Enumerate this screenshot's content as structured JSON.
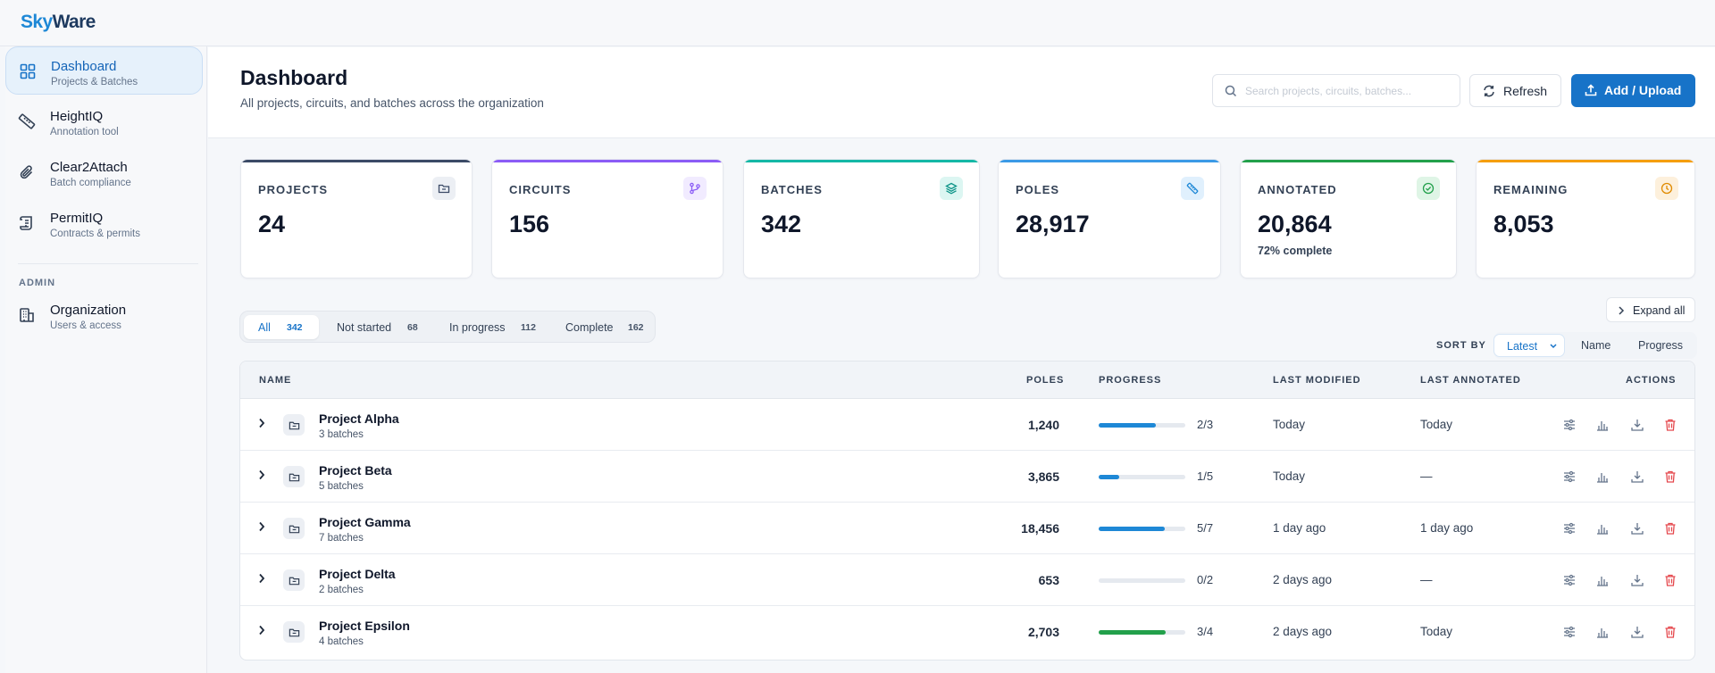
{
  "brand": {
    "sky": "Sky",
    "ware": "Ware"
  },
  "sidebar": {
    "items": [
      {
        "title": "Dashboard",
        "subtitle": "Projects & Batches",
        "icon": "grid-icon"
      },
      {
        "title": "HeightIQ",
        "subtitle": "Annotation tool",
        "icon": "ruler-icon"
      },
      {
        "title": "Clear2Attach",
        "subtitle": "Batch compliance",
        "icon": "paperclip-icon"
      },
      {
        "title": "PermitIQ",
        "subtitle": "Contracts & permits",
        "icon": "scroll-icon"
      }
    ],
    "admin_label": "ADMIN",
    "admin_items": [
      {
        "title": "Organization",
        "subtitle": "Users & access",
        "icon": "building-icon"
      }
    ]
  },
  "header": {
    "title": "Dashboard",
    "subtitle": "All projects, circuits, and batches across the organization",
    "search_placeholder": "Search projects, circuits, batches...",
    "refresh_label": "Refresh",
    "add_label": "Add / Upload"
  },
  "stats": [
    {
      "label": "PROJECTS",
      "value": "24",
      "note": "",
      "color": "#3b4a66",
      "icon": "folder-icon"
    },
    {
      "label": "CIRCUITS",
      "value": "156",
      "note": "",
      "color": "#8b5cf6",
      "icon": "branch-icon"
    },
    {
      "label": "BATCHES",
      "value": "342",
      "note": "",
      "color": "#14b8a6",
      "icon": "layers-icon"
    },
    {
      "label": "POLES",
      "value": "28,917",
      "note": "",
      "color": "#3b9ae6",
      "icon": "ruler-icon"
    },
    {
      "label": "ANNOTATED",
      "value": "20,864",
      "note": "72% complete",
      "color": "#22a04b",
      "icon": "check-circle-icon"
    },
    {
      "label": "REMAINING",
      "value": "8,053",
      "note": "",
      "color": "#f59e0b",
      "icon": "clock-icon"
    }
  ],
  "filters": [
    {
      "label": "All",
      "count": "342"
    },
    {
      "label": "Not started",
      "count": "68"
    },
    {
      "label": "In progress",
      "count": "112"
    },
    {
      "label": "Complete",
      "count": "162"
    }
  ],
  "expand_label": "Expand all",
  "sort": {
    "label": "SORT BY",
    "options": [
      "Latest",
      "Name",
      "Progress"
    ],
    "selected": "Latest"
  },
  "table": {
    "columns": {
      "name": "NAME",
      "poles": "POLES",
      "progress": "PROGRESS",
      "last_modified": "LAST MODIFIED",
      "last_annotated": "LAST ANNOTATED",
      "actions": "ACTIONS"
    },
    "rows": [
      {
        "name": "Project Alpha",
        "batches": "3 batches",
        "poles": "1,240",
        "progress": 0.66,
        "fraction": "2/3",
        "last_modified": "Today",
        "last_annotated": "Today",
        "bar_color": "#1e88d6"
      },
      {
        "name": "Project Beta",
        "batches": "5 batches",
        "poles": "3,865",
        "progress": 0.24,
        "fraction": "1/5",
        "last_modified": "Today",
        "last_annotated": "—",
        "bar_color": "#1e88d6"
      },
      {
        "name": "Project Gamma",
        "batches": "7 batches",
        "poles": "18,456",
        "progress": 0.76,
        "fraction": "5/7",
        "last_modified": "1 day ago",
        "last_annotated": "1 day ago",
        "bar_color": "#1e88d6"
      },
      {
        "name": "Project Delta",
        "batches": "2 batches",
        "poles": "653",
        "progress": 0,
        "fraction": "0/2",
        "last_modified": "2 days ago",
        "last_annotated": "—",
        "bar_color": "#1e88d6"
      },
      {
        "name": "Project Epsilon",
        "batches": "4 batches",
        "poles": "2,703",
        "progress": 0.77,
        "fraction": "3/4",
        "last_modified": "2 days ago",
        "last_annotated": "Today",
        "bar_color": "#22a04b"
      }
    ]
  }
}
